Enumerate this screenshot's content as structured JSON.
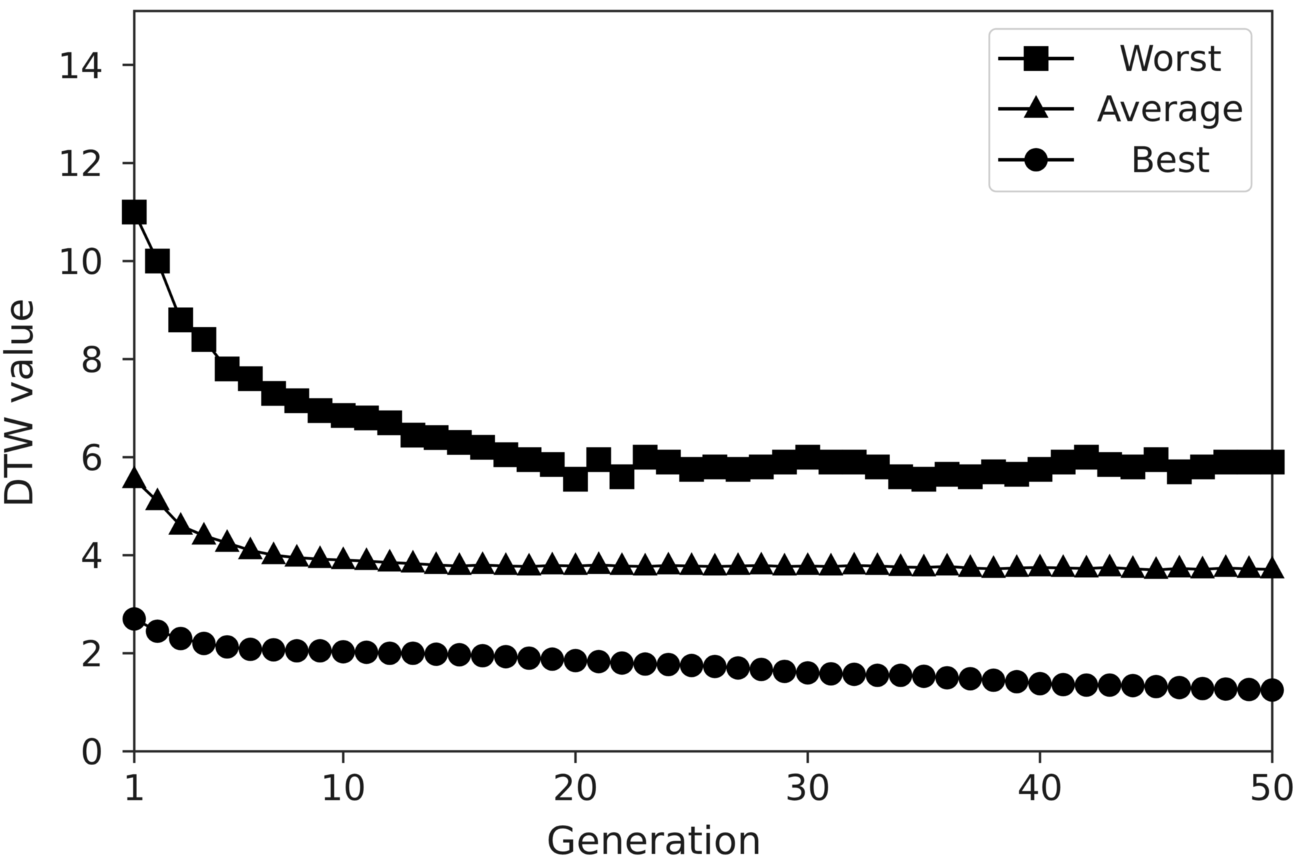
{
  "figure": {
    "background": "#ffffff",
    "axis_color": "#2a2a2a",
    "text_color": "#1c1c1c",
    "series_color": "#000000",
    "legend_border_color": "#cccccc"
  },
  "chart_data": {
    "type": "line",
    "title": "",
    "xlabel": "Generation",
    "ylabel": "DTW value",
    "xlim": [
      1,
      50
    ],
    "ylim": [
      0,
      15.1
    ],
    "xticks": [
      1,
      10,
      20,
      30,
      40,
      50
    ],
    "yticks": [
      0,
      2,
      4,
      6,
      8,
      10,
      12,
      14
    ],
    "grid": false,
    "legend_position": "upper right",
    "x": [
      1,
      2,
      3,
      4,
      5,
      6,
      7,
      8,
      9,
      10,
      11,
      12,
      13,
      14,
      15,
      16,
      17,
      18,
      19,
      20,
      21,
      22,
      23,
      24,
      25,
      26,
      27,
      28,
      29,
      30,
      31,
      32,
      33,
      34,
      35,
      36,
      37,
      38,
      39,
      40,
      41,
      42,
      43,
      44,
      45,
      46,
      47,
      48,
      49,
      50
    ],
    "series": [
      {
        "name": "Worst",
        "marker": "square",
        "color": "#000000",
        "values": [
          11.0,
          10.0,
          8.8,
          8.4,
          7.8,
          7.6,
          7.3,
          7.15,
          6.95,
          6.85,
          6.8,
          6.7,
          6.45,
          6.4,
          6.3,
          6.2,
          6.05,
          5.95,
          5.85,
          5.55,
          5.95,
          5.6,
          6.0,
          5.9,
          5.75,
          5.8,
          5.75,
          5.8,
          5.9,
          6.0,
          5.9,
          5.9,
          5.8,
          5.6,
          5.55,
          5.65,
          5.6,
          5.7,
          5.65,
          5.75,
          5.9,
          6.0,
          5.85,
          5.8,
          5.95,
          5.7,
          5.8,
          5.9,
          5.9,
          5.9
        ]
      },
      {
        "name": "Average",
        "marker": "triangle-up",
        "color": "#000000",
        "values": [
          5.55,
          5.1,
          4.6,
          4.4,
          4.25,
          4.1,
          4.0,
          3.95,
          3.92,
          3.9,
          3.88,
          3.85,
          3.83,
          3.8,
          3.78,
          3.8,
          3.78,
          3.77,
          3.79,
          3.78,
          3.8,
          3.78,
          3.77,
          3.79,
          3.78,
          3.77,
          3.78,
          3.79,
          3.77,
          3.78,
          3.77,
          3.79,
          3.78,
          3.76,
          3.75,
          3.77,
          3.74,
          3.72,
          3.74,
          3.75,
          3.74,
          3.73,
          3.75,
          3.72,
          3.7,
          3.73,
          3.71,
          3.74,
          3.72,
          3.71
        ]
      },
      {
        "name": "Best",
        "marker": "circle",
        "color": "#000000",
        "values": [
          2.7,
          2.45,
          2.3,
          2.2,
          2.13,
          2.08,
          2.07,
          2.05,
          2.05,
          2.03,
          2.02,
          2.0,
          2.0,
          1.98,
          1.97,
          1.95,
          1.93,
          1.9,
          1.88,
          1.85,
          1.83,
          1.8,
          1.78,
          1.77,
          1.75,
          1.73,
          1.7,
          1.67,
          1.63,
          1.6,
          1.58,
          1.57,
          1.55,
          1.55,
          1.53,
          1.5,
          1.48,
          1.45,
          1.42,
          1.38,
          1.36,
          1.35,
          1.35,
          1.34,
          1.32,
          1.3,
          1.28,
          1.27,
          1.26,
          1.25
        ]
      }
    ]
  }
}
